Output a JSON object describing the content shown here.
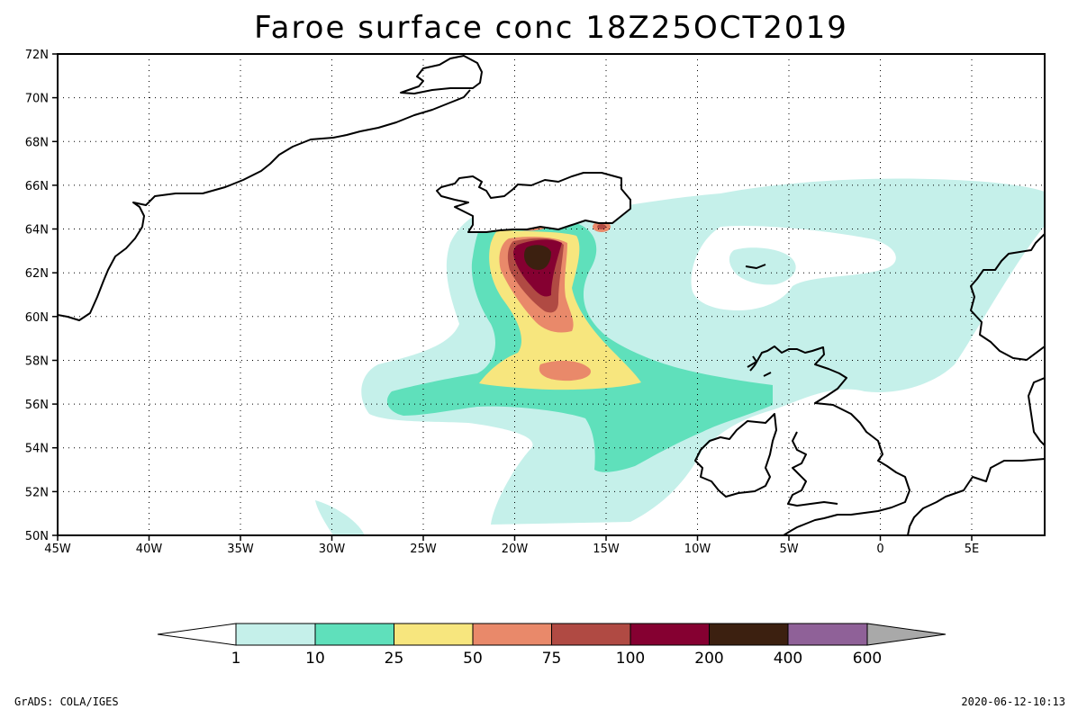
{
  "title": "Faroe surface conc  18Z25OCT2019",
  "lon_ticks": [
    "45W",
    "40W",
    "35W",
    "30W",
    "25W",
    "20W",
    "15W",
    "10W",
    "5W",
    "0",
    "5E"
  ],
  "lat_ticks": [
    "72N",
    "70N",
    "68N",
    "66N",
    "64N",
    "62N",
    "60N",
    "58N",
    "56N",
    "54N",
    "52N",
    "50N"
  ],
  "colorbar": {
    "labels": [
      "1",
      "10",
      "25",
      "50",
      "75",
      "100",
      "200",
      "400",
      "600"
    ],
    "colors": [
      "#ffffff",
      "#c5f0ea",
      "#5fe0bb",
      "#f7e67e",
      "#e9896a",
      "#b04a43",
      "#850031",
      "#3c2010",
      "#8f6198",
      "#a9a9a9"
    ]
  },
  "footer": {
    "left": "GrADS: COLA/IGES",
    "right": "2020-06-12-10:13"
  }
}
